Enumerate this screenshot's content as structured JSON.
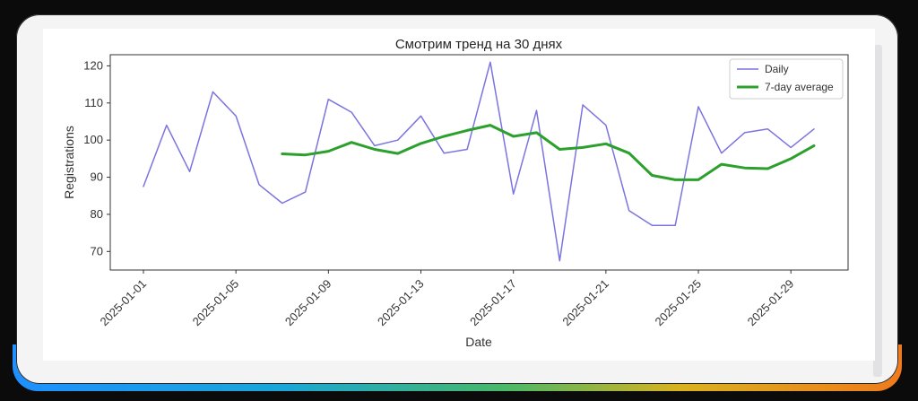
{
  "chart_data": {
    "type": "line",
    "title": "Смотрим тренд на 30 днях",
    "xlabel": "Date",
    "ylabel": "Registrations",
    "ylim": [
      65,
      123
    ],
    "yticks": [
      70,
      80,
      90,
      100,
      110,
      120
    ],
    "xticks": [
      "2025-01-01",
      "2025-01-05",
      "2025-01-09",
      "2025-01-13",
      "2025-01-17",
      "2025-01-21",
      "2025-01-25",
      "2025-01-29"
    ],
    "dates": [
      "2025-01-01",
      "2025-01-02",
      "2025-01-03",
      "2025-01-04",
      "2025-01-05",
      "2025-01-06",
      "2025-01-07",
      "2025-01-08",
      "2025-01-09",
      "2025-01-10",
      "2025-01-11",
      "2025-01-12",
      "2025-01-13",
      "2025-01-14",
      "2025-01-15",
      "2025-01-16",
      "2025-01-17",
      "2025-01-18",
      "2025-01-19",
      "2025-01-20",
      "2025-01-21",
      "2025-01-22",
      "2025-01-23",
      "2025-01-24",
      "2025-01-25",
      "2025-01-26",
      "2025-01-27",
      "2025-01-28",
      "2025-01-29",
      "2025-01-30"
    ],
    "grid": false,
    "legend_position": "top-right",
    "series": [
      {
        "name": "Daily",
        "color": "#7b74e0",
        "values": [
          87.5,
          104,
          91.5,
          113,
          106.5,
          88,
          83,
          86,
          111,
          107.5,
          98.5,
          100,
          106.5,
          96.5,
          97.5,
          121,
          85.5,
          108,
          67.5,
          109.5,
          104,
          81,
          77,
          77,
          109,
          96.5,
          102,
          103,
          98,
          103
        ]
      },
      {
        "name": "7-day average",
        "color": "#2ca02c",
        "values": [
          null,
          null,
          null,
          null,
          null,
          null,
          96.3,
          96,
          97,
          99.4,
          97.5,
          96.4,
          99.1,
          101,
          102.6,
          104,
          101,
          102,
          97.5,
          98,
          99,
          96.5,
          90.5,
          89.3,
          89.3,
          93.5,
          92.5,
          92.3,
          95,
          98.5
        ]
      }
    ]
  }
}
